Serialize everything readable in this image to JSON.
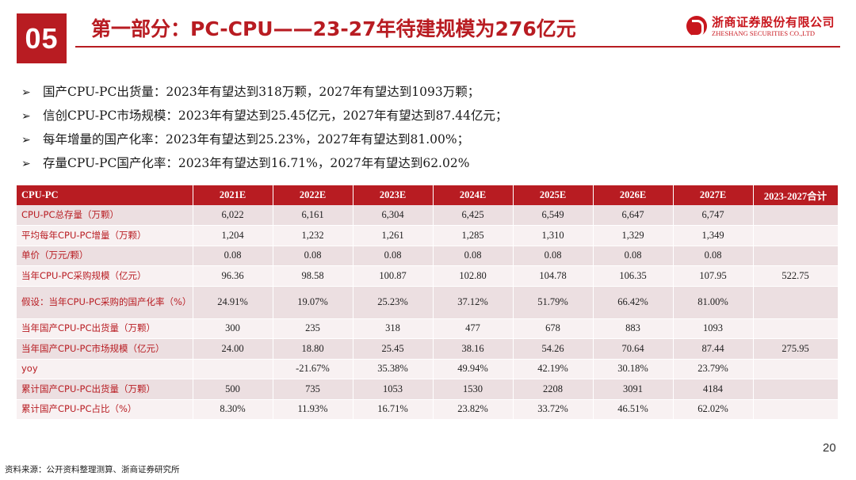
{
  "header": {
    "section_number": "05",
    "title": "第一部分：PC-CPU——23-27年待建规模为276亿元",
    "logo": {
      "name_cn": "浙商证券股份有限公司",
      "name_en": "ZHESHANG SECURITIES CO.,LTD",
      "color": "#c8161d"
    }
  },
  "bullets": [
    "国产CPU-PC出货量：2023年有望达到318万颗，2027年有望达到1093万颗；",
    "信创CPU-PC市场规模：2023年有望达到25.45亿元，2027年有望达到87.44亿元；",
    "每年增量的国产化率：2023年有望达到25.23%，2027年有望达到81.00%；",
    "存量CPU-PC国产化率：2023年有望达到16.71%，2027年有望达到62.02%"
  ],
  "bullet_icon": "arrow-bullet-icon",
  "table": {
    "headers": [
      "CPU-PC",
      "2021E",
      "2022E",
      "2023E",
      "2024E",
      "2025E",
      "2026E",
      "2027E",
      "2023-2027合计"
    ],
    "rows": [
      {
        "label": "CPU-PC总存量（万颗）",
        "values": [
          "6,022",
          "6,161",
          "6,304",
          "6,425",
          "6,549",
          "6,647",
          "6,747",
          ""
        ]
      },
      {
        "label": "平均每年CPU-PC增量（万颗）",
        "values": [
          "1,204",
          "1,232",
          "1,261",
          "1,285",
          "1,310",
          "1,329",
          "1,349",
          ""
        ]
      },
      {
        "label": "单价（万元/颗）",
        "values": [
          "0.08",
          "0.08",
          "0.08",
          "0.08",
          "0.08",
          "0.08",
          "0.08",
          ""
        ]
      },
      {
        "label": "当年CPU-PC采购规模（亿元）",
        "values": [
          "96.36",
          "98.58",
          "100.87",
          "102.80",
          "104.78",
          "106.35",
          "107.95",
          "522.75"
        ]
      },
      {
        "label": "假设：当年CPU-PC采购的国产化率（%）",
        "values": [
          "24.91%",
          "19.07%",
          "25.23%",
          "37.12%",
          "51.79%",
          "66.42%",
          "81.00%",
          ""
        ]
      },
      {
        "label": "当年国产CPU-PC出货量（万颗）",
        "values": [
          "300",
          "235",
          "318",
          "477",
          "678",
          "883",
          "1093",
          ""
        ]
      },
      {
        "label": "当年国产CPU-PC市场规模（亿元）",
        "values": [
          "24.00",
          "18.80",
          "25.45",
          "38.16",
          "54.26",
          "70.64",
          "87.44",
          "275.95"
        ]
      },
      {
        "label": "yoy",
        "values": [
          "",
          "-21.67%",
          "35.38%",
          "49.94%",
          "42.19%",
          "30.18%",
          "23.79%",
          ""
        ]
      },
      {
        "label": "累计国产CPU-PC出货量（万颗）",
        "values": [
          "500",
          "735",
          "1053",
          "1530",
          "2208",
          "3091",
          "4184",
          ""
        ]
      },
      {
        "label": "累计国产CPU-PC占比（%）",
        "values": [
          "8.30%",
          "11.93%",
          "16.71%",
          "23.82%",
          "33.72%",
          "46.51%",
          "62.02%",
          ""
        ]
      }
    ]
  },
  "footer": {
    "page_number": "20",
    "source": "资料来源：公开资料整理测算、浙商证券研究所"
  },
  "colors": {
    "accent": "#b81c22",
    "row_odd": "#ecdfe1",
    "row_even": "#f8f1f2"
  }
}
